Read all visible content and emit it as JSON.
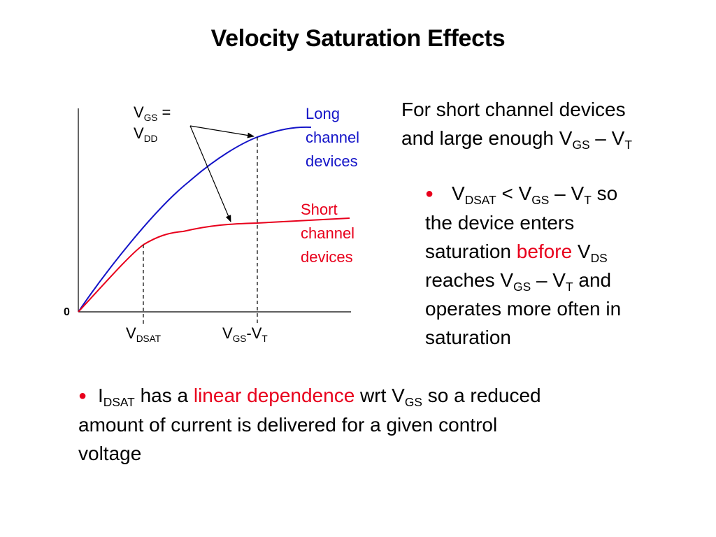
{
  "slide": {
    "title": "Velocity Saturation Effects"
  },
  "diagram": {
    "vgs_label": {
      "v": "V",
      "gs": "GS",
      "eq": " =",
      "v2": "V",
      "dd": "DD"
    },
    "long": {
      "line1": "Long",
      "line2": "channel",
      "line3": "devices"
    },
    "short": {
      "line1": "Short",
      "line2": "channel",
      "line3": "devices"
    },
    "origin": "0",
    "vdsat": {
      "v": "V",
      "sub": "DSAT"
    },
    "vgsvt": {
      "v": "V",
      "gs": "GS",
      "dash": "-V",
      "t": "T"
    },
    "colors": {
      "long_curve": "#1414c8",
      "short_curve": "#e8001c"
    }
  },
  "right_text": {
    "intro_1": "For short channel devices",
    "intro_2a": "and large enough V",
    "intro_2_gs": "GS",
    "intro_2b": " – V",
    "intro_2_t": "T",
    "bullet": "●",
    "b1_v": "V",
    "b1_dsat": "DSAT",
    "b1_lt": " < V",
    "b1_gs": "GS",
    "b1_minus": " – V",
    "b1_t": "T",
    "b1_so": " so",
    "b1_line2": "the device enters",
    "b1_line3a": "saturation ",
    "b1_before": "before",
    "b1_line3b": " V",
    "b1_ds": "DS",
    "b1_line4a": "reaches V",
    "b1_line4_gs": "GS",
    "b1_line4b": " – V",
    "b1_line4_t": "T",
    "b1_line4c": " and",
    "b1_line5": "operates more often in",
    "b1_line6": "saturation"
  },
  "bottom_text": {
    "bullet": "●",
    "i": "I",
    "dsat": "DSAT",
    "has_a": " has a ",
    "linear": "linear dependence",
    "wrt": " wrt V",
    "gs": "GS",
    "rest1": " so a reduced",
    "line2": "amount of current is delivered for a given control",
    "line3": "voltage"
  }
}
